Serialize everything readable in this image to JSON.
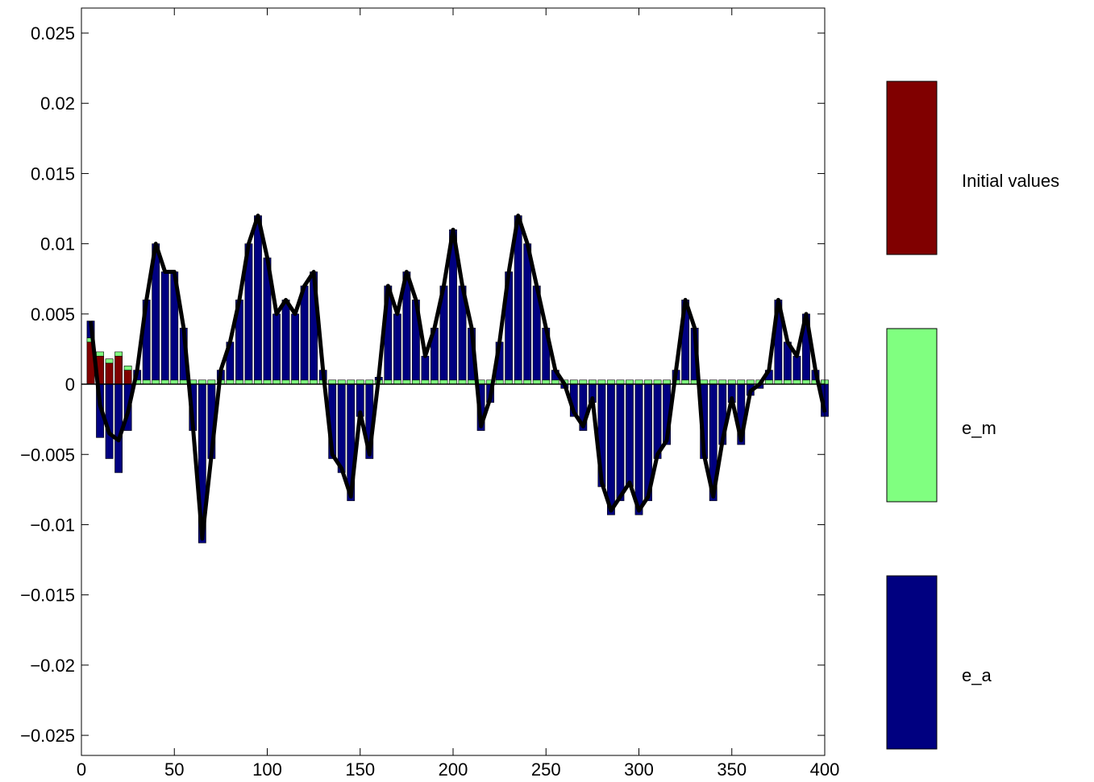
{
  "chart_data": {
    "type": "bar",
    "stacked": true,
    "x": [
      5,
      10,
      15,
      20,
      25,
      30,
      35,
      40,
      45,
      50,
      55,
      60,
      65,
      70,
      75,
      80,
      85,
      90,
      95,
      100,
      105,
      110,
      115,
      120,
      125,
      130,
      135,
      140,
      145,
      150,
      155,
      160,
      165,
      170,
      175,
      180,
      185,
      190,
      195,
      200,
      205,
      210,
      215,
      220,
      225,
      230,
      235,
      240,
      245,
      250,
      255,
      260,
      265,
      270,
      275,
      280,
      285,
      290,
      295,
      300,
      305,
      310,
      315,
      320,
      325,
      330,
      335,
      340,
      345,
      350,
      355,
      360,
      365,
      370,
      375,
      380,
      385,
      390,
      395,
      400
    ],
    "xlim": [
      0,
      400
    ],
    "xticks": [
      0,
      50,
      100,
      150,
      200,
      250,
      300,
      350,
      400
    ],
    "ylim": [
      -0.02643,
      0.02678
    ],
    "yticks": [
      {
        "value": -0.025,
        "label": "−0.025"
      },
      {
        "value": -0.02,
        "label": "−0.02"
      },
      {
        "value": -0.015,
        "label": "−0.015"
      },
      {
        "value": -0.01,
        "label": "−0.01"
      },
      {
        "value": -0.005,
        "label": "−0.005"
      },
      0,
      0.005,
      0.01,
      0.015,
      0.02,
      0.025
    ],
    "series": [
      {
        "name": "Initial values",
        "color": "#800000",
        "values": [
          0.003,
          0.002,
          0.0015,
          0.002,
          0.001,
          0,
          0,
          0,
          0,
          0,
          0,
          0,
          0,
          0,
          0,
          0,
          0,
          0,
          0,
          0,
          0,
          0,
          0,
          0,
          0,
          0,
          0,
          0,
          0,
          0,
          0,
          0,
          0,
          0,
          0,
          0,
          0,
          0,
          0,
          0,
          0,
          0,
          0,
          0,
          0,
          0,
          0,
          0,
          0,
          0,
          0,
          0,
          0,
          0,
          0,
          0,
          0,
          0,
          0,
          0,
          0,
          0,
          0,
          0,
          0,
          0,
          0,
          0,
          0,
          0,
          0,
          0,
          0,
          0,
          0,
          0,
          0,
          0,
          0,
          0
        ]
      },
      {
        "name": "e_m",
        "color": "#80ff80",
        "values": [
          0.0003,
          0.0003,
          0.0003,
          0.0003,
          0.0003,
          0.0003,
          0.0003,
          0.0003,
          0.0003,
          0.0003,
          0.0003,
          0.0003,
          0.0003,
          0.0003,
          0.0003,
          0.0003,
          0.0003,
          0.0003,
          0.0003,
          0.0003,
          0.0003,
          0.0003,
          0.0003,
          0.0003,
          0.0003,
          0.0003,
          0.0003,
          0.0003,
          0.0003,
          0.0003,
          0.0003,
          0.0003,
          0.0003,
          0.0003,
          0.0003,
          0.0003,
          0.0003,
          0.0003,
          0.0003,
          0.0003,
          0.0003,
          0.0003,
          0.0003,
          0.0003,
          0.0003,
          0.0003,
          0.0003,
          0.0003,
          0.0003,
          0.0003,
          0.0003,
          0.0003,
          0.0003,
          0.0003,
          0.0003,
          0.0003,
          0.0003,
          0.0003,
          0.0003,
          0.0003,
          0.0003,
          0.0003,
          0.0003,
          0.0003,
          0.0003,
          0.0003,
          0.0003,
          0.0003,
          0.0003,
          0.0003,
          0.0003,
          0.0003,
          0.0003,
          0.0003,
          0.0003,
          0.0003,
          0.0003,
          0.0003,
          0.0003,
          0.0003
        ]
      },
      {
        "name": "e_a",
        "color": "#000080",
        "values": [
          0.0012,
          -0.0038,
          -0.0053,
          -0.0063,
          -0.0033,
          0.0007,
          0.0057,
          0.0097,
          0.0077,
          0.0077,
          0.0037,
          -0.0033,
          -0.0113,
          -0.0053,
          0.0007,
          0.0027,
          0.0057,
          0.0097,
          0.0117,
          0.0087,
          0.0047,
          0.0057,
          0.0047,
          0.0067,
          0.0077,
          0.0007,
          -0.0053,
          -0.0063,
          -0.0083,
          -0.0023,
          -0.0053,
          0.0002,
          0.0067,
          0.0047,
          0.0077,
          0.0057,
          0.0017,
          0.0037,
          0.0067,
          0.0107,
          0.0067,
          0.0037,
          -0.0033,
          -0.0013,
          0.0027,
          0.0077,
          0.0117,
          0.0097,
          0.0067,
          0.0037,
          0.0007,
          -0.0003,
          -0.0023,
          -0.0033,
          -0.0013,
          -0.0073,
          -0.0093,
          -0.0083,
          -0.0073,
          -0.0093,
          -0.0083,
          -0.0053,
          -0.0043,
          0.0007,
          0.0057,
          0.0037,
          -0.0053,
          -0.0083,
          -0.0043,
          -0.0013,
          -0.0043,
          -0.0008,
          -0.0003,
          0.0007,
          0.0057,
          0.0027,
          0.0017,
          0.0047,
          0.0007,
          -0.0023
        ]
      },
      {
        "type": "line",
        "color": "#000000",
        "values": [
          0.0045,
          -0.0015,
          -0.0035,
          -0.004,
          -0.002,
          0.001,
          0.006,
          0.01,
          0.008,
          0.008,
          0.004,
          -0.003,
          -0.011,
          -0.005,
          0.001,
          0.003,
          0.006,
          0.01,
          0.012,
          0.009,
          0.005,
          0.006,
          0.005,
          0.007,
          0.008,
          0.001,
          -0.005,
          -0.006,
          -0.008,
          -0.002,
          -0.005,
          0.0005,
          0.007,
          0.005,
          0.008,
          0.006,
          0.002,
          0.004,
          0.007,
          0.011,
          0.007,
          0.004,
          -0.003,
          -0.001,
          0.003,
          0.008,
          0.012,
          0.01,
          0.007,
          0.004,
          0.001,
          0,
          -0.002,
          -0.003,
          -0.001,
          -0.007,
          -0.009,
          -0.008,
          -0.007,
          -0.009,
          -0.008,
          -0.005,
          -0.004,
          0.001,
          0.006,
          0.004,
          -0.005,
          -0.008,
          -0.004,
          -0.001,
          -0.004,
          -0.0005,
          0,
          0.001,
          0.006,
          0.003,
          0.002,
          0.005,
          0.001,
          -0.002
        ]
      }
    ]
  }
}
